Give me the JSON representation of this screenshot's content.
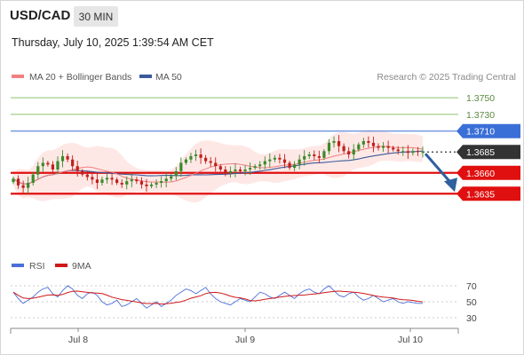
{
  "header": {
    "symbol": "USD/CAD",
    "timeframe": "30 MIN",
    "timestamp": "Thursday, July 10, 2025 1:39:54 AM CET"
  },
  "legend": {
    "ma20": "MA 20 + Bollinger Bands",
    "ma50": "MA 50",
    "source": "Research © 2025 Trading Central",
    "rsi": "RSI",
    "ma9": "9MA"
  },
  "colors": {
    "ma20": "#f08080",
    "ma50": "#3a5a9c",
    "resistance_green": "#8dc26f",
    "pivot_blue": "#3b6fd8",
    "support_red": "#e01010",
    "current": "#333333",
    "arrow": "#2e5f9e",
    "rsi": "#4a6fd8",
    "rsi_ma": "#d01818",
    "bands_fill": "#fde0de",
    "candle_up": "#3a8a2a",
    "candle_down": "#c0201a"
  },
  "chart_data": {
    "type": "candlestick",
    "ylim": [
      1.358,
      1.3765
    ],
    "x_tick_labels": [
      "Jul 8",
      "Jul 9",
      "Jul 10"
    ],
    "levels": [
      {
        "value": 1.375,
        "label": "1.3750",
        "kind": "resistance"
      },
      {
        "value": 1.373,
        "label": "1.3730",
        "kind": "resistance"
      },
      {
        "value": 1.371,
        "label": "1.3710",
        "kind": "pivot"
      },
      {
        "value": 1.3685,
        "label": "1.3685",
        "kind": "current"
      },
      {
        "value": 1.366,
        "label": "1.3660",
        "kind": "support"
      },
      {
        "value": 1.3635,
        "label": "1.3635",
        "kind": "support"
      }
    ],
    "trend": "down",
    "closes": [
      1.3653,
      1.3645,
      1.3642,
      1.3648,
      1.3658,
      1.3668,
      1.3672,
      1.367,
      1.3664,
      1.3674,
      1.368,
      1.3676,
      1.3668,
      1.3662,
      1.3658,
      1.3655,
      1.3652,
      1.3648,
      1.3652,
      1.3654,
      1.3652,
      1.3648,
      1.3646,
      1.365,
      1.3652,
      1.365,
      1.3646,
      1.3644,
      1.3646,
      1.3648,
      1.365,
      1.3653,
      1.3656,
      1.3662,
      1.3672,
      1.3676,
      1.368,
      1.3682,
      1.3678,
      1.3674,
      1.3672,
      1.3668,
      1.3664,
      1.366,
      1.3662,
      1.3664,
      1.3662,
      1.3664,
      1.3666,
      1.3668,
      1.367,
      1.3674,
      1.3676,
      1.3678,
      1.3676,
      1.3672,
      1.3666,
      1.367,
      1.3676,
      1.368,
      1.3682,
      1.368,
      1.3678,
      1.3686,
      1.3696,
      1.3698,
      1.3692,
      1.3686,
      1.3682,
      1.3688,
      1.3694,
      1.3698,
      1.3696,
      1.3692,
      1.369,
      1.3692,
      1.369,
      1.3688,
      1.3686,
      1.3686,
      1.3684,
      1.3686,
      1.3685,
      1.3685
    ],
    "rsi": {
      "ylim": [
        20,
        80
      ],
      "ticks": [
        70,
        50,
        30
      ],
      "tick_labels": [
        "70",
        "50",
        "30"
      ],
      "values": [
        62,
        54,
        48,
        52,
        56,
        62,
        66,
        68,
        60,
        56,
        64,
        70,
        66,
        58,
        54,
        60,
        62,
        58,
        50,
        46,
        48,
        52,
        44,
        46,
        50,
        54,
        48,
        42,
        46,
        50,
        44,
        48,
        52,
        58,
        62,
        66,
        64,
        60,
        64,
        68,
        60,
        54,
        50,
        48,
        46,
        50,
        54,
        52,
        50,
        56,
        62,
        60,
        56,
        54,
        58,
        62,
        58,
        54,
        60,
        64,
        66,
        62,
        60,
        66,
        70,
        64,
        58,
        56,
        60,
        62,
        56,
        52,
        54,
        58,
        54,
        50,
        52,
        54,
        50,
        48,
        50,
        49,
        48,
        48
      ]
    }
  }
}
